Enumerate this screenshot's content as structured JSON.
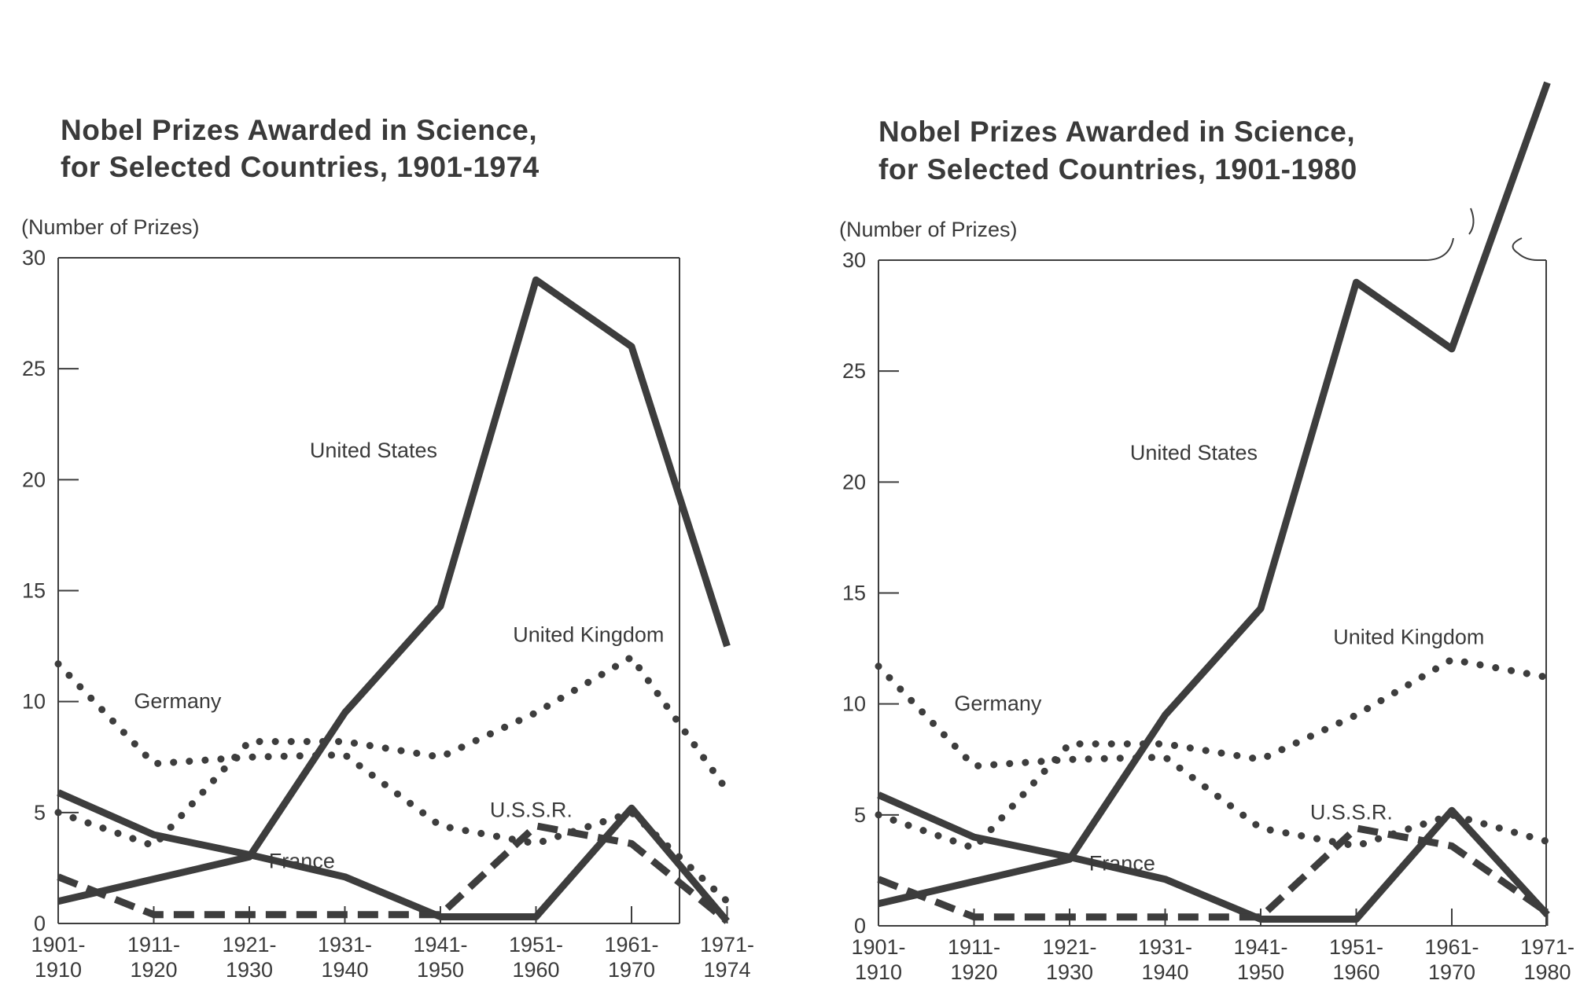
{
  "charts": [
    {
      "title_line1": "Nobel Prizes Awarded in Science,",
      "title_line2": "for Selected Countries, 1901-1974",
      "ylabel": "(Number of Prizes)"
    },
    {
      "title_line1": "Nobel Prizes Awarded in Science,",
      "title_line2": "for Selected Countries, 1901-1980",
      "ylabel": "(Number of Prizes)"
    }
  ],
  "chart_data": [
    {
      "type": "line",
      "title": "Nobel Prizes Awarded in Science, for Selected Countries, 1901-1974",
      "xlabel": "",
      "ylabel": "(Number of Prizes)",
      "categories": [
        "1901-\n1910",
        "1911-\n1920",
        "1921-\n1930",
        "1931-\n1940",
        "1941-\n1950",
        "1951-\n1960",
        "1961-\n1970",
        "1971-\n1974"
      ],
      "yticks": [
        0,
        5,
        10,
        15,
        20,
        25,
        30
      ],
      "ylim": [
        0,
        30
      ],
      "grid": false,
      "legend": "labels placed on chart",
      "series": [
        {
          "name": "United States",
          "style": "solid",
          "values": [
            1,
            2,
            3,
            9.5,
            14.3,
            29,
            26,
            12.5
          ],
          "label_anchor": [
            3.3,
            21
          ]
        },
        {
          "name": "United Kingdom",
          "style": "dotted",
          "values": [
            5,
            3.5,
            8.2,
            8.2,
            7.5,
            9.5,
            12,
            6
          ],
          "label_anchor": [
            5.55,
            12.7
          ]
        },
        {
          "name": "Germany",
          "style": "dotted",
          "values": [
            11.7,
            7.2,
            7.5,
            7.6,
            4.4,
            3.6,
            5,
            1
          ],
          "label_anchor": [
            1.25,
            9.7
          ]
        },
        {
          "name": "France",
          "style": "solid",
          "values": [
            5.9,
            4,
            3.1,
            2.1,
            0.3,
            0.3,
            5.2,
            0.1
          ],
          "label_anchor": [
            2.55,
            2.5
          ]
        },
        {
          "name": "U.S.S.R.",
          "style": "dashed",
          "values": [
            2.1,
            0.4,
            0.4,
            0.4,
            0.4,
            4.4,
            3.6,
            0.1
          ],
          "label_anchor": [
            4.95,
            4.8
          ]
        }
      ]
    },
    {
      "type": "line",
      "title": "Nobel Prizes Awarded in Science, for Selected Countries, 1901-1980",
      "xlabel": "",
      "ylabel": "(Number of Prizes)",
      "categories": [
        "1901-\n1910",
        "1911-\n1920",
        "1921-\n1930",
        "1931-\n1940",
        "1941-\n1950",
        "1951-\n1960",
        "1961-\n1970",
        "1971-\n1980"
      ],
      "yticks": [
        0,
        5,
        10,
        15,
        20,
        25,
        30
      ],
      "ylim": [
        0,
        30
      ],
      "grid": false,
      "axis_break": "top border broken where United States line exceeds 30",
      "legend": "labels placed on chart",
      "series": [
        {
          "name": "United States",
          "style": "solid",
          "values": [
            1,
            2,
            3,
            9.5,
            14.3,
            29,
            26,
            38
          ],
          "label_anchor": [
            3.3,
            21
          ]
        },
        {
          "name": "United Kingdom",
          "style": "dotted",
          "values": [
            5,
            3.5,
            8.2,
            8.2,
            7.5,
            9.5,
            12,
            11.2
          ],
          "label_anchor": [
            5.55,
            12.7
          ]
        },
        {
          "name": "Germany",
          "style": "dotted",
          "values": [
            11.7,
            7.2,
            7.5,
            7.6,
            4.4,
            3.6,
            5,
            3.8
          ],
          "label_anchor": [
            1.25,
            9.7
          ]
        },
        {
          "name": "France",
          "style": "solid",
          "values": [
            5.9,
            4,
            3.1,
            2.1,
            0.3,
            0.3,
            5.2,
            0.5
          ],
          "label_anchor": [
            2.55,
            2.5
          ]
        },
        {
          "name": "U.S.S.R.",
          "style": "dashed",
          "values": [
            2.1,
            0.4,
            0.4,
            0.4,
            0.4,
            4.4,
            3.6,
            0.6
          ],
          "label_anchor": [
            4.95,
            4.8
          ]
        }
      ]
    }
  ]
}
